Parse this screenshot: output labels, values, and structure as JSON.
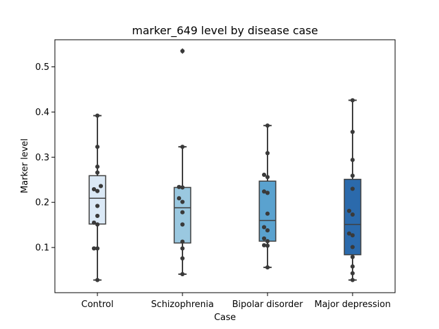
{
  "chart_data": {
    "type": "box",
    "title": "marker_649 level by disease case",
    "xlabel": "Case",
    "ylabel": "Marker level",
    "categories": [
      "Control",
      "Schizophrenia",
      "Bipolar disorder",
      "Major depression"
    ],
    "ylim": [
      0.0,
      0.56
    ],
    "yticks": [
      0.1,
      0.2,
      0.3,
      0.4,
      0.5
    ],
    "ytick_labels": [
      "0.1",
      "0.2",
      "0.3",
      "0.4",
      "0.5"
    ],
    "grid": false,
    "colors": {
      "box_fills": [
        "#dbe9f6",
        "#9ac8e0",
        "#5aa2cf",
        "#2b6aac"
      ],
      "line": "#3f3f3f",
      "points": "#3a3a3a"
    },
    "boxes": [
      {
        "category": "Control",
        "whisker_low": 0.028,
        "q1": 0.152,
        "median": 0.209,
        "q3": 0.259,
        "whisker_high": 0.392,
        "outliers": []
      },
      {
        "category": "Schizophrenia",
        "whisker_low": 0.041,
        "q1": 0.11,
        "median": 0.188,
        "q3": 0.233,
        "whisker_high": 0.323,
        "outliers": [
          0.535
        ]
      },
      {
        "category": "Bipolar disorder",
        "whisker_low": 0.056,
        "q1": 0.114,
        "median": 0.16,
        "q3": 0.247,
        "whisker_high": 0.37,
        "outliers": []
      },
      {
        "category": "Major depression",
        "whisker_low": 0.028,
        "q1": 0.084,
        "median": 0.151,
        "q3": 0.251,
        "whisker_high": 0.426,
        "outliers": []
      }
    ],
    "points": [
      {
        "category": "Control",
        "values": [
          0.392,
          0.323,
          0.279,
          0.266,
          0.236,
          0.229,
          0.225,
          0.192,
          0.17,
          0.155,
          0.151,
          0.098,
          0.098,
          0.028
        ]
      },
      {
        "category": "Schizophrenia",
        "values": [
          0.535,
          0.323,
          0.234,
          0.233,
          0.209,
          0.201,
          0.178,
          0.151,
          0.113,
          0.098,
          0.076,
          0.041
        ]
      },
      {
        "category": "Bipolar disorder",
        "values": [
          0.37,
          0.309,
          0.261,
          0.256,
          0.224,
          0.221,
          0.175,
          0.145,
          0.138,
          0.12,
          0.114,
          0.105,
          0.104,
          0.056
        ]
      },
      {
        "category": "Major depression",
        "values": [
          0.426,
          0.356,
          0.294,
          0.259,
          0.23,
          0.181,
          0.173,
          0.131,
          0.127,
          0.101,
          0.079,
          0.058,
          0.043,
          0.028
        ]
      }
    ]
  }
}
